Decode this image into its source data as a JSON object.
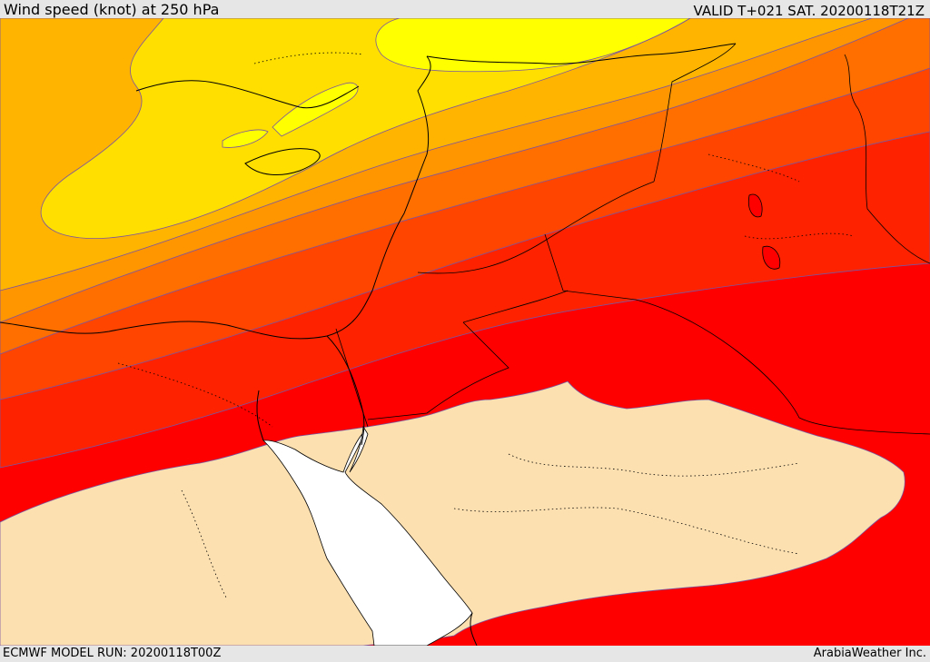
{
  "header": {
    "title": "Wind speed (knot) at 250 hPa",
    "valid": "VALID T+021 SAT. 20200118T21Z"
  },
  "footer": {
    "model_run": "ECMWF MODEL RUN: 20200118T00Z",
    "credit": "ArabiaWeather Inc."
  },
  "colors": {
    "band_1": "#ffff00",
    "band_2": "#ffdf00",
    "band_3": "#ffb400",
    "band_4": "#ff9600",
    "band_5": "#ff6f00",
    "band_6": "#ff4500",
    "band_7": "#ff2200",
    "band_8": "#ff0000",
    "low_speed": "#fde0b0",
    "no_data": "#ffffff"
  }
}
